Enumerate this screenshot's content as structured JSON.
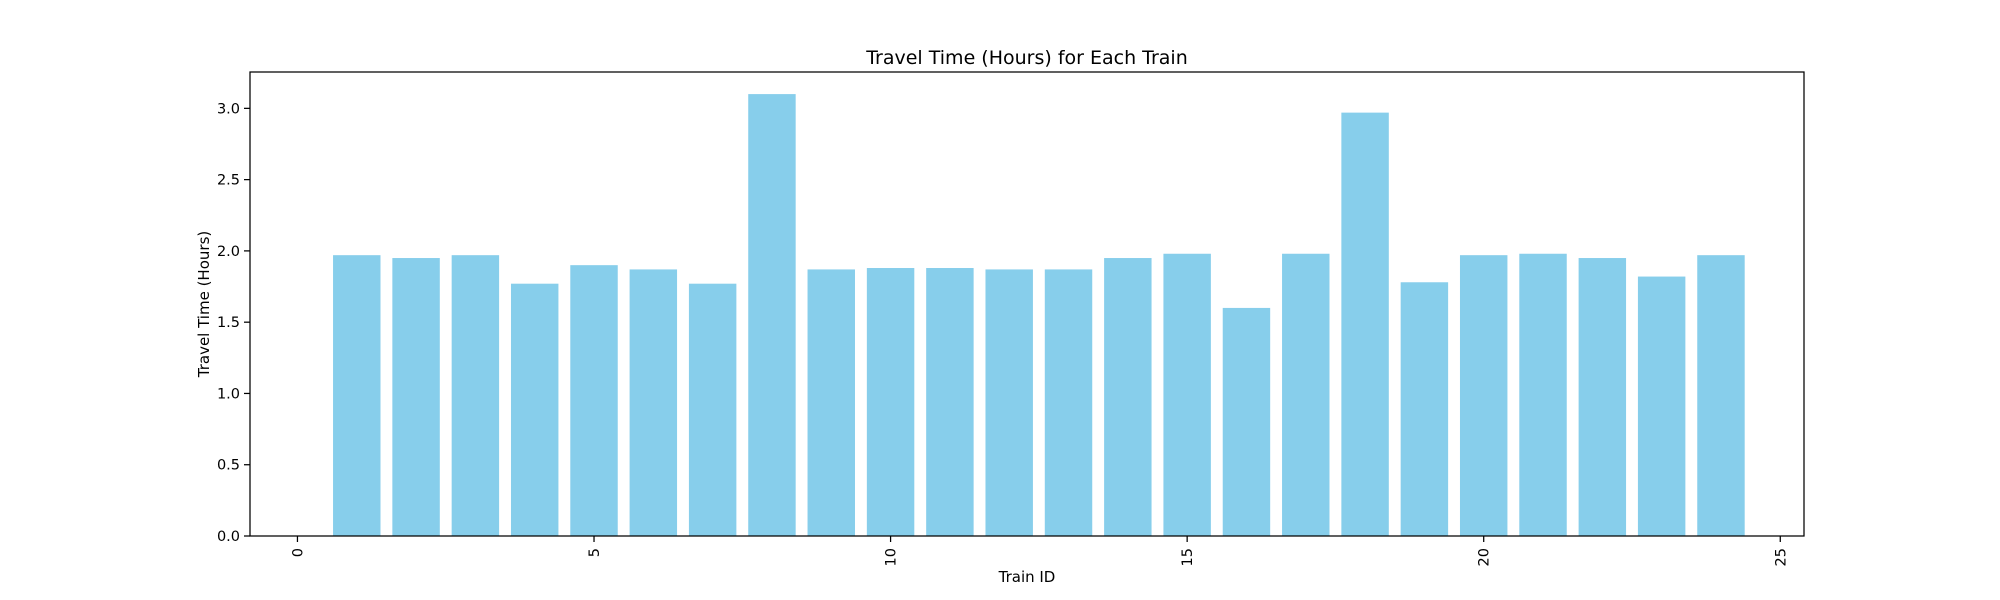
{
  "chart_data": {
    "type": "bar",
    "title": "Travel Time (Hours) for Each Train",
    "xlabel": "Train ID",
    "ylabel": "Travel Time (Hours)",
    "x": [
      1,
      2,
      3,
      4,
      5,
      6,
      7,
      8,
      9,
      10,
      11,
      12,
      13,
      14,
      15,
      16,
      17,
      18,
      19,
      20,
      21,
      22,
      23,
      24
    ],
    "values": [
      1.97,
      1.95,
      1.97,
      1.77,
      1.9,
      1.87,
      1.77,
      3.1,
      1.87,
      1.88,
      1.88,
      1.87,
      1.87,
      1.95,
      1.98,
      1.6,
      1.98,
      2.97,
      1.78,
      1.97,
      1.98,
      1.95,
      1.82,
      1.97
    ],
    "xlim": [
      -0.8,
      25.4
    ],
    "ylim": [
      0,
      3.255
    ],
    "xticks": [
      0,
      5,
      10,
      15,
      20,
      25
    ],
    "yticks": [
      0.0,
      0.5,
      1.0,
      1.5,
      2.0,
      2.5,
      3.0
    ],
    "xtick_labels": [
      "0",
      "5",
      "10",
      "15",
      "20",
      "25"
    ],
    "ytick_labels": [
      "0.0",
      "0.5",
      "1.0",
      "1.5",
      "2.0",
      "2.5",
      "3.0"
    ],
    "xtick_rotation": 90,
    "grid": false,
    "legend": "none",
    "bar_color": "#87ceeb"
  }
}
